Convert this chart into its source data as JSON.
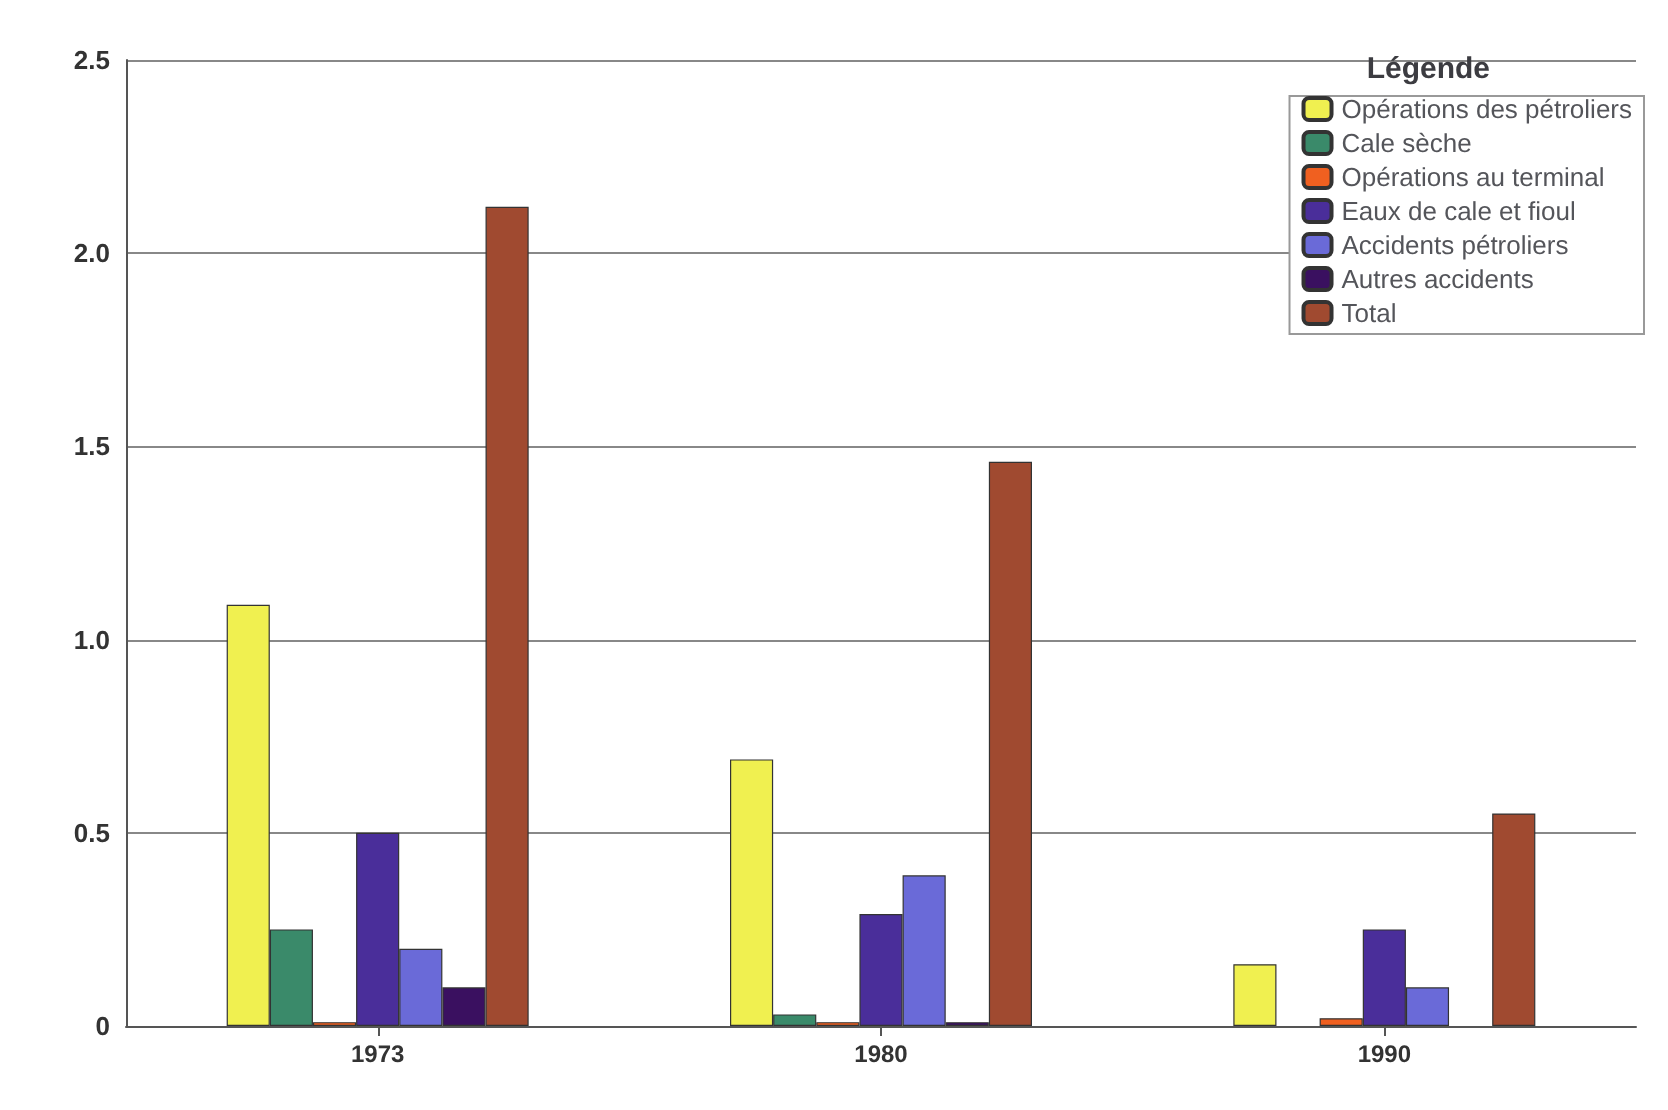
{
  "chart_data": {
    "type": "bar",
    "legend_title": "Légende",
    "categories": [
      "1973",
      "1980",
      "1990"
    ],
    "series": [
      {
        "name": "Opérations des pétroliers",
        "color": "#f0f050",
        "values": [
          1.09,
          0.69,
          0.16
        ]
      },
      {
        "name": "Cale sèche",
        "color": "#3a8a6a",
        "values": [
          0.25,
          0.03,
          0
        ]
      },
      {
        "name": "Opérations au terminal",
        "color": "#f06020",
        "values": [
          0.01,
          0.01,
          0.02
        ]
      },
      {
        "name": "Eaux de cale et fioul",
        "color": "#4a2e9a",
        "values": [
          0.5,
          0.29,
          0.25
        ]
      },
      {
        "name": "Accidents pétroliers",
        "color": "#6a6ad8",
        "values": [
          0.2,
          0.39,
          0.1
        ]
      },
      {
        "name": "Autres accidents",
        "color": "#3a1060",
        "values": [
          0.1,
          0.01,
          0
        ]
      },
      {
        "name": "Total",
        "color": "#a04a30",
        "values": [
          2.12,
          1.46,
          0.55
        ]
      }
    ],
    "ylim": [
      0,
      2.5
    ],
    "yticks": [
      0,
      0.5,
      {
        "value": 1,
        "label": "1.0"
      },
      1.5,
      {
        "value": 2,
        "label": "2.0"
      },
      2.5
    ],
    "grid": "y",
    "legend": "top right"
  }
}
